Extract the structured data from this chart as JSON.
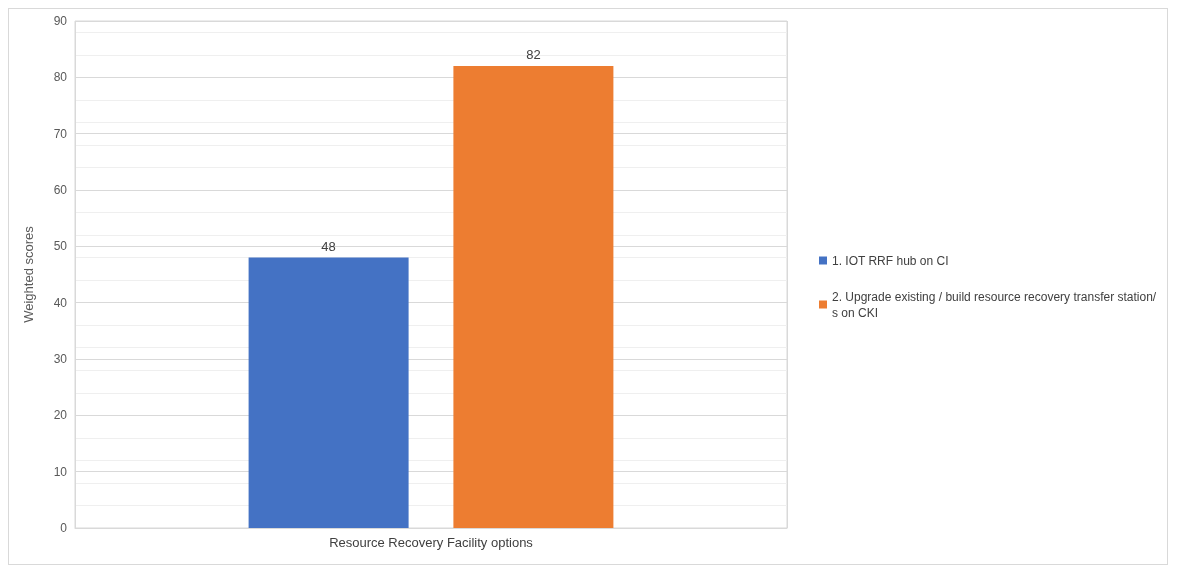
{
  "chart_data": {
    "type": "bar",
    "ylabel": "Weighted scores",
    "categories": [
      "Resource Recovery Facility options"
    ],
    "series": [
      {
        "name": "1. IOT RRF hub on CI",
        "color": "#4472c4",
        "values": [
          48
        ]
      },
      {
        "name": "2. Upgrade existing / build resource recovery transfer station/s on CKI",
        "color": "#ed7d31",
        "values": [
          82
        ]
      }
    ],
    "ylim": [
      0,
      90
    ],
    "yticks": [
      0,
      10,
      20,
      30,
      40,
      50,
      60,
      70,
      80,
      90
    ],
    "grid": true,
    "legend": "right",
    "data_labels": true
  }
}
